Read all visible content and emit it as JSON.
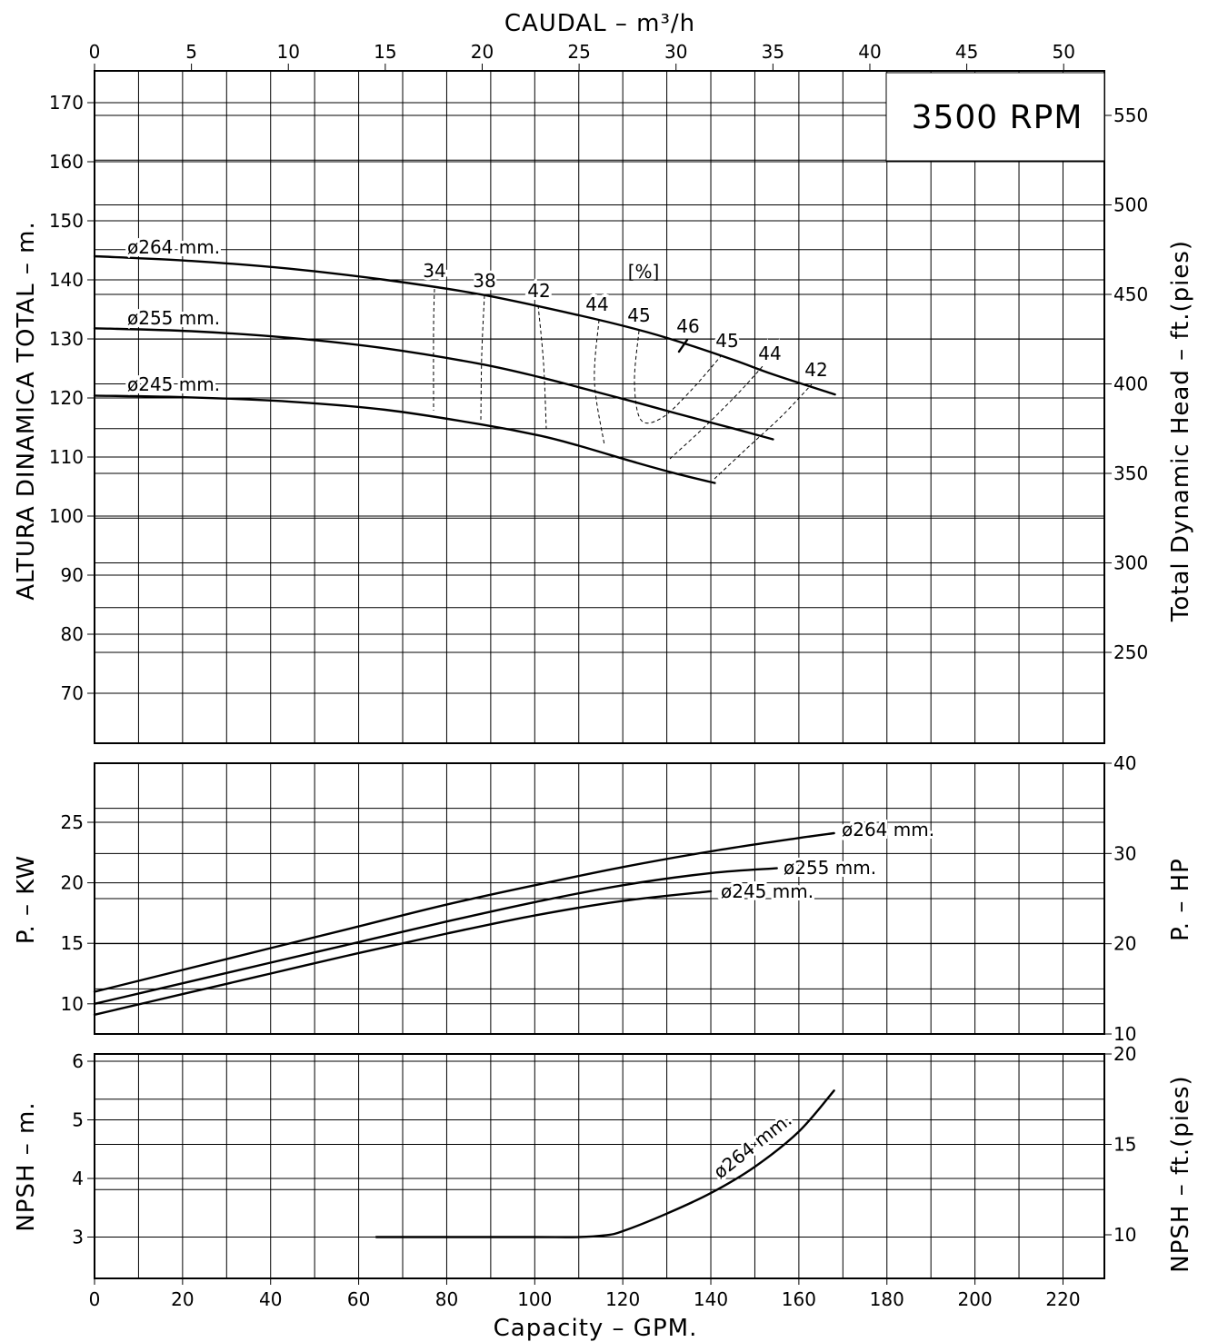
{
  "chart_data": {
    "type": "line",
    "speed_label": "3500 RPM",
    "x_top": {
      "label": "CAUDAL  – m³/h",
      "range": [
        0,
        52.1
      ],
      "ticks": [
        0,
        5,
        10,
        15,
        20,
        25,
        30,
        35,
        40,
        45,
        50
      ]
    },
    "x_bottom": {
      "label": "Capacity – GPM.",
      "range": [
        0,
        229.4
      ],
      "ticks": [
        0,
        20,
        40,
        60,
        80,
        100,
        120,
        140,
        160,
        180,
        200,
        220
      ]
    },
    "panels": [
      {
        "id": "head",
        "y_left": {
          "label": "ALTURA DINAMICA TOTAL – m.",
          "range": [
            61,
            176
          ],
          "ticks": [
            70,
            80,
            90,
            100,
            110,
            120,
            130,
            140,
            150,
            160,
            170
          ]
        },
        "y_right": {
          "label": "Total Dynamic Head – ft.(pies)",
          "ticks": [
            250,
            300,
            350,
            400,
            450,
            500,
            550
          ]
        },
        "series": [
          {
            "name": "ø264 mm.",
            "x": [
              0,
              5,
              10,
              15,
              20,
              25,
              28,
              30,
              33,
              35,
              38.2
            ],
            "y": [
              144,
              143.2,
              141.9,
              140,
              137.5,
              134,
              131.6,
              129.7,
              126.4,
              124,
              120.6
            ]
          },
          {
            "name": "ø255 mm.",
            "x": [
              0,
              5,
              10,
              15,
              20,
              23,
              25,
              28,
              30,
              33,
              35
            ],
            "y": [
              131.8,
              131.3,
              130.2,
              128.4,
              125.7,
              123.5,
              121.8,
              119.2,
              117.4,
              114.8,
              113
            ]
          },
          {
            "name": "ø245 mm.",
            "x": [
              0,
              5,
              10,
              15,
              20,
              23,
              25,
              28,
              30,
              32
            ],
            "y": [
              120.4,
              120.1,
              119.4,
              118,
              115.5,
              113.6,
              111.9,
              109,
              107.2,
              105.6
            ]
          }
        ],
        "efficiency_unit": "[%]",
        "efficiency_contours": [
          {
            "label": "34",
            "x": [
              17.5,
              17.5
            ],
            "y": [
              139,
              116
            ]
          },
          {
            "label": "38",
            "x": [
              20.1,
              19.8
            ],
            "y": [
              137,
              115.8
            ]
          },
          {
            "label": "42",
            "x": [
              22.9,
              23.3
            ],
            "y": [
              135.5,
              113.5
            ]
          },
          {
            "label": "44",
            "x": [
              25.8,
              25.6,
              26.3
            ],
            "y": [
              134,
              123,
              110.8
            ]
          },
          {
            "label": "45",
            "x": [
              28.2,
              27.8,
              28,
              28.6,
              30,
              32,
              33.4
            ],
            "y": [
              132,
              123,
              117,
              116,
              117.5,
              123,
              128
            ]
          },
          {
            "label": "46",
            "x": [
              30.3,
              30.8
            ],
            "y": [
              128.7,
              130.8
            ]
          },
          {
            "label": "45",
            "x": [
              32.2,
              33.5,
              35,
              36.5
            ],
            "y": [
              107,
              113,
              119,
              126.5
            ]
          },
          {
            "label": "44",
            "x": [
              30.4,
              31.7,
              33.6,
              34
            ],
            "y": [
              117.1,
              127,
              119,
              123
            ]
          },
          {
            "label": "42",
            "x": [
              38,
              33.4,
              36,
              36.6
            ],
            "y": [
              116,
              122.5,
              113,
              120
            ]
          }
        ],
        "annotations": [
          "34",
          "38",
          "42",
          "44",
          "45",
          "46",
          "45",
          "44",
          "42"
        ]
      },
      {
        "id": "power",
        "y_left": {
          "label": "P. – KW",
          "range": [
            7.5,
            30.2
          ],
          "ticks": [
            10,
            15,
            20,
            25
          ]
        },
        "y_right": {
          "label": "P. – HP",
          "ticks": [
            10,
            20,
            30,
            40
          ]
        },
        "series": [
          {
            "name": "ø264 mm.",
            "x": [
              0,
              20,
              40,
              60,
              80,
              100,
              120,
              140,
              160,
              168
            ],
            "y": [
              11,
              12.8,
              14.6,
              16.4,
              18.2,
              19.8,
              21.3,
              22.6,
              23.7,
              24.1
            ]
          },
          {
            "name": "ø255 mm.",
            "x": [
              0,
              20,
              40,
              60,
              80,
              100,
              120,
              140,
              155
            ],
            "y": [
              10,
              11.7,
              13.4,
              15.1,
              16.8,
              18.4,
              19.8,
              20.8,
              21.2
            ]
          },
          {
            "name": "ø245 mm.",
            "x": [
              0,
              20,
              40,
              60,
              80,
              100,
              120,
              140
            ],
            "y": [
              9.1,
              10.8,
              12.5,
              14.2,
              15.8,
              17.3,
              18.5,
              19.3
            ]
          }
        ]
      },
      {
        "id": "npsh",
        "y_left": {
          "label": "NPSH – m.",
          "range": [
            2.3,
            6.1
          ],
          "ticks": [
            3,
            4,
            5,
            6
          ]
        },
        "y_right": {
          "label": "NPSH – ft.(pies)",
          "ticks": [
            10,
            15,
            20
          ]
        },
        "series": [
          {
            "name": "ø264 mm.",
            "x": [
              64,
              80,
              100,
              110,
              116,
              120,
              130,
              140,
              150,
              160,
              168
            ],
            "y": [
              3,
              3,
              3,
              3,
              3.03,
              3.1,
              3.4,
              3.75,
              4.2,
              4.8,
              5.5
            ]
          }
        ]
      }
    ]
  }
}
